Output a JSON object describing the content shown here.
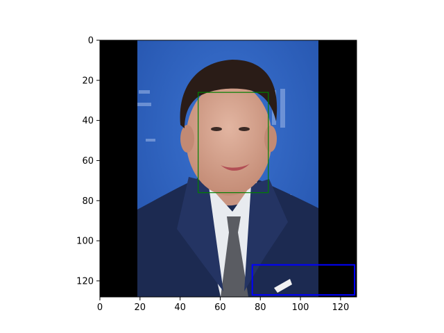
{
  "chart_data": {
    "type": "image",
    "title": "",
    "xlabel": "",
    "ylabel": "",
    "xlim": [
      0,
      128
    ],
    "ylim": [
      128,
      0
    ],
    "x_ticks": [
      0,
      20,
      40,
      60,
      80,
      100,
      120
    ],
    "y_ticks": [
      0,
      20,
      40,
      60,
      80,
      100,
      120
    ],
    "image_region": {
      "x": [
        19,
        109
      ],
      "y": [
        0,
        128
      ]
    },
    "image_description_colors": {
      "padding": "#000000",
      "background": "#2f63c2",
      "suit": "#1d2b52",
      "shirt": "#e9ecef",
      "tie": "#5b5d63",
      "skin": "#d6a38e",
      "hair": "#2a1c17"
    },
    "boxes": [
      {
        "name": "face-box",
        "color": "#008000",
        "x": [
          49,
          84
        ],
        "y": [
          26,
          76
        ]
      },
      {
        "name": "region-box",
        "color": "#0000ff",
        "x": [
          76,
          127
        ],
        "y": [
          112,
          127
        ]
      }
    ],
    "grid": false,
    "legend": "none"
  }
}
